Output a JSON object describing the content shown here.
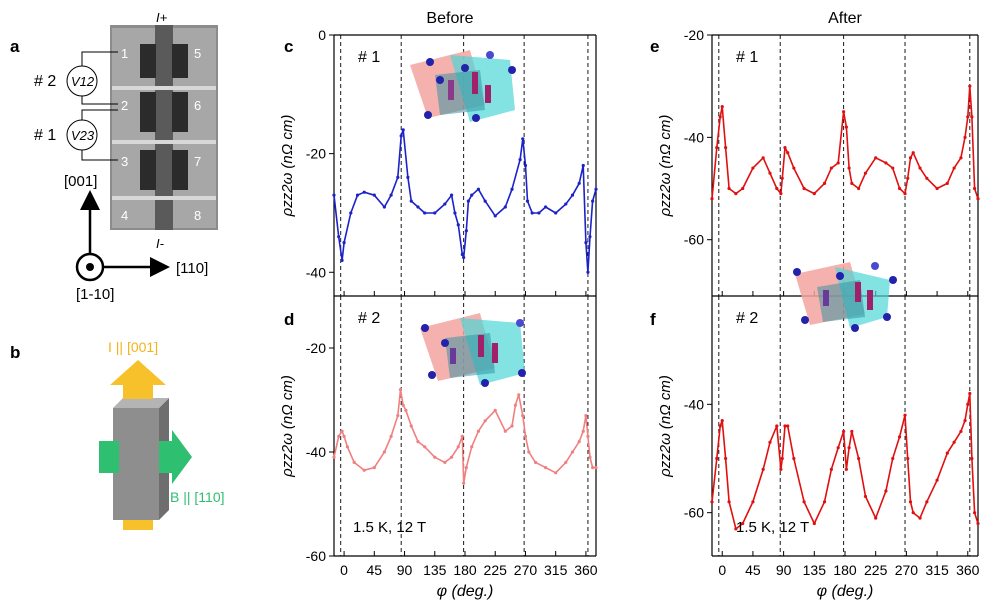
{
  "figure": {
    "panel_labels": {
      "a": "a",
      "b": "b",
      "c": "c",
      "d": "d",
      "e": "e",
      "f": "f"
    },
    "column_titles": {
      "before": "Before",
      "after": "After"
    }
  },
  "schematic": {
    "electrode_top": "I+",
    "electrode_bottom": "I-",
    "contacts": [
      "1",
      "2",
      "3",
      "4",
      "5",
      "6",
      "7",
      "8"
    ],
    "pair_labels": [
      "# 2",
      "# 1"
    ],
    "voltmeters": [
      "V12",
      "V23"
    ],
    "dir_up": "[001]",
    "dir_right": "[110]",
    "dir_out": "[1-10]",
    "current_label": "I || [001]",
    "field_label": "B || [110]"
  },
  "colors": {
    "blue": "#1c22c8",
    "pink": "#f08080",
    "red": "#e01010",
    "axis": "#000000"
  },
  "chart_data": [
    {
      "id": "c",
      "type": "line",
      "tag": "# 1",
      "title": "Before",
      "color": "#1c22c8",
      "xlabel": "φ (deg.)",
      "ylabel": "ρzz2ω (nΩ cm)",
      "xlim": [
        -15,
        375
      ],
      "ylim": [
        -44,
        0
      ],
      "yticks": [
        0,
        -20,
        -40
      ],
      "xticks": [
        0,
        45,
        90,
        135,
        180,
        225,
        270,
        315,
        360
      ],
      "dashed_x": [
        -5,
        85,
        178,
        268,
        363
      ],
      "x": [
        -15,
        -8,
        -3,
        0,
        10,
        20,
        30,
        45,
        60,
        70,
        80,
        85,
        88,
        95,
        100,
        110,
        120,
        135,
        150,
        160,
        165,
        170,
        176,
        178,
        182,
        185,
        190,
        200,
        210,
        225,
        240,
        250,
        262,
        266,
        270,
        273,
        280,
        290,
        300,
        315,
        330,
        340,
        350,
        356,
        360,
        363,
        366,
        370,
        375
      ],
      "y": [
        -27,
        -34,
        -38,
        -35,
        -30,
        -27,
        -26.5,
        -27,
        -29,
        -27,
        -24,
        -17,
        -16,
        -24,
        -28,
        -29,
        -30,
        -30,
        -28.5,
        -27,
        -30,
        -32,
        -37,
        -37.5,
        -33,
        -28,
        -27,
        -26,
        -28,
        -30.5,
        -29,
        -26,
        -21,
        -17.5,
        -22,
        -28,
        -30,
        -30,
        -29,
        -30,
        -28.5,
        -27,
        -25,
        -22,
        -35,
        -40,
        -34,
        -28,
        -26
      ]
    },
    {
      "id": "d",
      "type": "line",
      "tag": "# 2",
      "color": "#f08080",
      "xlabel": "φ (deg.)",
      "ylabel": "ρzz2ω (nΩ cm)",
      "xlim": [
        -15,
        375
      ],
      "ylim": [
        -60,
        -10
      ],
      "yticks": [
        -20,
        -40,
        -60
      ],
      "xticks": [
        0,
        45,
        90,
        135,
        180,
        225,
        270,
        315,
        360
      ],
      "dashed_x": [
        -5,
        85,
        178,
        268,
        363
      ],
      "x": [
        -15,
        -8,
        -3,
        0,
        5,
        15,
        30,
        45,
        60,
        70,
        80,
        84,
        88,
        92,
        100,
        110,
        120,
        135,
        150,
        160,
        170,
        176,
        178,
        182,
        190,
        200,
        210,
        225,
        240,
        250,
        255,
        260,
        266,
        270,
        275,
        285,
        300,
        315,
        330,
        340,
        350,
        356,
        360,
        363,
        366,
        370,
        375
      ],
      "y": [
        -41,
        -37,
        -36,
        -37,
        -39,
        -42,
        -43.5,
        -43,
        -40,
        -37,
        -33,
        -28,
        -31,
        -32,
        -35,
        -38,
        -39,
        -41,
        -42,
        -41,
        -39,
        -37,
        -46,
        -43,
        -39,
        -36,
        -34,
        -32,
        -36,
        -35,
        -31,
        -29,
        -33,
        -37,
        -40,
        -42,
        -43,
        -44,
        -42,
        -40,
        -38,
        -36,
        -33,
        -37,
        -41,
        -43,
        -43
      ]
    },
    {
      "id": "e",
      "type": "line",
      "tag": "# 1",
      "title": "After",
      "color": "#e01010",
      "xlabel": "φ (deg.)",
      "ylabel": "ρzz2ω (nΩ cm)",
      "xlim": [
        -15,
        375
      ],
      "ylim": [
        -71,
        -20
      ],
      "yticks": [
        -20,
        -40,
        -60
      ],
      "xticks": [
        0,
        45,
        90,
        135,
        180,
        225,
        270,
        315,
        360
      ],
      "dashed_x": [
        -5,
        85,
        178,
        268,
        363
      ],
      "x": [
        -15,
        -8,
        -3,
        0,
        5,
        10,
        20,
        30,
        45,
        60,
        70,
        80,
        86,
        88,
        92,
        96,
        105,
        120,
        135,
        150,
        160,
        170,
        178,
        182,
        186,
        190,
        200,
        210,
        225,
        240,
        250,
        260,
        268,
        272,
        276,
        280,
        290,
        300,
        315,
        330,
        340,
        350,
        356,
        360,
        363,
        366,
        370,
        375
      ],
      "y": [
        -52,
        -42,
        -36,
        -34,
        -42,
        -50,
        -51,
        -50,
        -46,
        -44,
        -47,
        -50,
        -51,
        -48,
        -42,
        -43,
        -46,
        -50,
        -51,
        -49,
        -46,
        -45,
        -35,
        -38,
        -46,
        -49,
        -50,
        -47,
        -44,
        -45,
        -46,
        -50,
        -51,
        -48,
        -44,
        -43,
        -46,
        -48,
        -50,
        -49,
        -46,
        -44,
        -40,
        -36,
        -30,
        -36,
        -50,
        -52
      ]
    },
    {
      "id": "f",
      "type": "line",
      "tag": "# 2",
      "color": "#e01010",
      "xlabel": "φ (deg.)",
      "ylabel": "ρzz2ω (nΩ cm)",
      "xlim": [
        -15,
        375
      ],
      "ylim": [
        -68,
        -20
      ],
      "yticks": [
        -40,
        -60
      ],
      "xticks": [
        0,
        45,
        90,
        135,
        180,
        225,
        270,
        315,
        360
      ],
      "dashed_x": [
        -5,
        85,
        178,
        268,
        363
      ],
      "x": [
        -15,
        -8,
        -3,
        0,
        5,
        10,
        20,
        30,
        45,
        60,
        70,
        80,
        86,
        88,
        92,
        96,
        105,
        120,
        135,
        150,
        160,
        170,
        178,
        182,
        186,
        190,
        200,
        210,
        225,
        240,
        250,
        260,
        268,
        272,
        276,
        280,
        290,
        300,
        315,
        330,
        340,
        350,
        356,
        360,
        363,
        366,
        370,
        375
      ],
      "y": [
        -58,
        -50,
        -44,
        -43,
        -50,
        -58,
        -63,
        -62,
        -58,
        -52,
        -47,
        -44,
        -52,
        -50,
        -44,
        -44,
        -50,
        -58,
        -62,
        -58,
        -52,
        -48,
        -45,
        -52,
        -48,
        -45,
        -50,
        -57,
        -61,
        -56,
        -50,
        -46,
        -42,
        -50,
        -58,
        -60,
        -61,
        -58,
        -54,
        -49,
        -47,
        -45,
        -43,
        -40,
        -38,
        -50,
        -60,
        -62
      ]
    }
  ],
  "annotations": {
    "condition_d": "1.5 K, 12 T",
    "condition_f": "1.5 K, 12 T"
  }
}
